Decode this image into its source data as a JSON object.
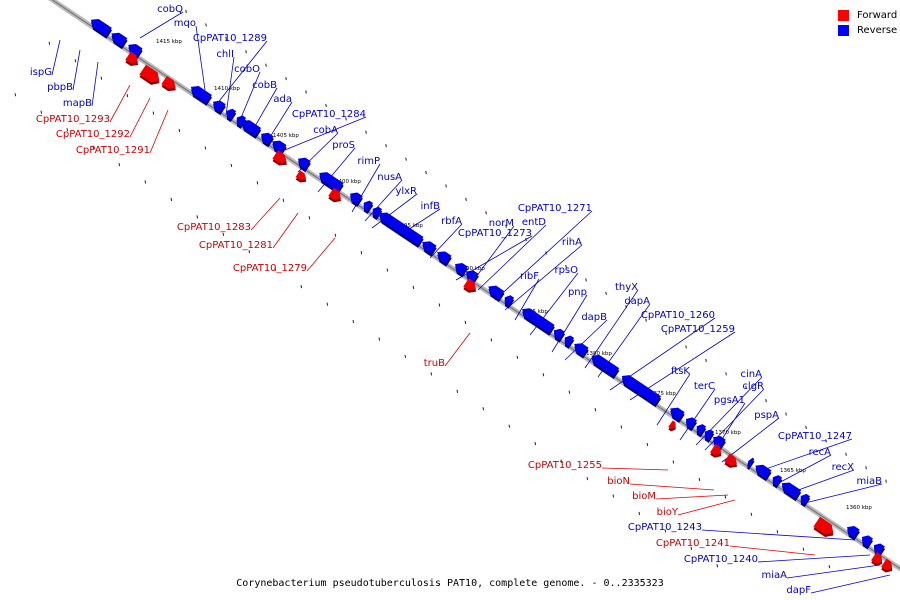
{
  "caption": "Corynebacterium pseudotuberculosis PAT10, complete genome. - 0..2335323",
  "legend": {
    "items": [
      {
        "label": "Forward",
        "color": "#ff0000"
      },
      {
        "label": "Reverse",
        "color": "#0000ff"
      }
    ]
  },
  "colors": {
    "forward": "#ee0000",
    "reverse": "#0000ee",
    "forward_text": "#cc0000",
    "reverse_text": "#0000cc"
  },
  "scale_labels": [
    "1415 kbp",
    "1410 kbp",
    "1405 kbp",
    "1400 kbp",
    "1395 kbp",
    "1390 kbp",
    "1385 kbp",
    "1380 kbp",
    "1375 kbp",
    "1370 kbp",
    "1365 kbp",
    "1360 kbp"
  ],
  "reverse_genes": [
    "cobQ",
    "mqo",
    "CpPAT10_1289",
    "chlI",
    "cobO",
    "cobB",
    "ada",
    "CpPAT10_1284",
    "cobA",
    "proS",
    "rimP",
    "nusA",
    "ylxR",
    "infB",
    "rbfA",
    "CpPAT10_1273",
    "norM",
    "CpPAT10_1271",
    "entD",
    "rihA",
    "ribF",
    "rpsO",
    "pnp",
    "dapB",
    "thyX",
    "dapA",
    "CpPAT10_1260",
    "CpPAT10_1259",
    "ftsK",
    "terC",
    "cinA",
    "clgR",
    "pgsA1",
    "pspA",
    "CpPAT10_1247",
    "recA",
    "recX",
    "miaB",
    "CpPAT10_1243",
    "CpPAT10_1240",
    "miaA",
    "dapF",
    "ispG",
    "pbpB",
    "mapB"
  ],
  "forward_genes": [
    "CpPAT10_1293",
    "CpPAT10_1292",
    "CpPAT10_1291",
    "CpPAT10_1283",
    "CpPAT10_1281",
    "CpPAT10_1279",
    "truB",
    "CpPAT10_1255",
    "bioN",
    "bioM",
    "bioY",
    "CpPAT10_1241"
  ]
}
